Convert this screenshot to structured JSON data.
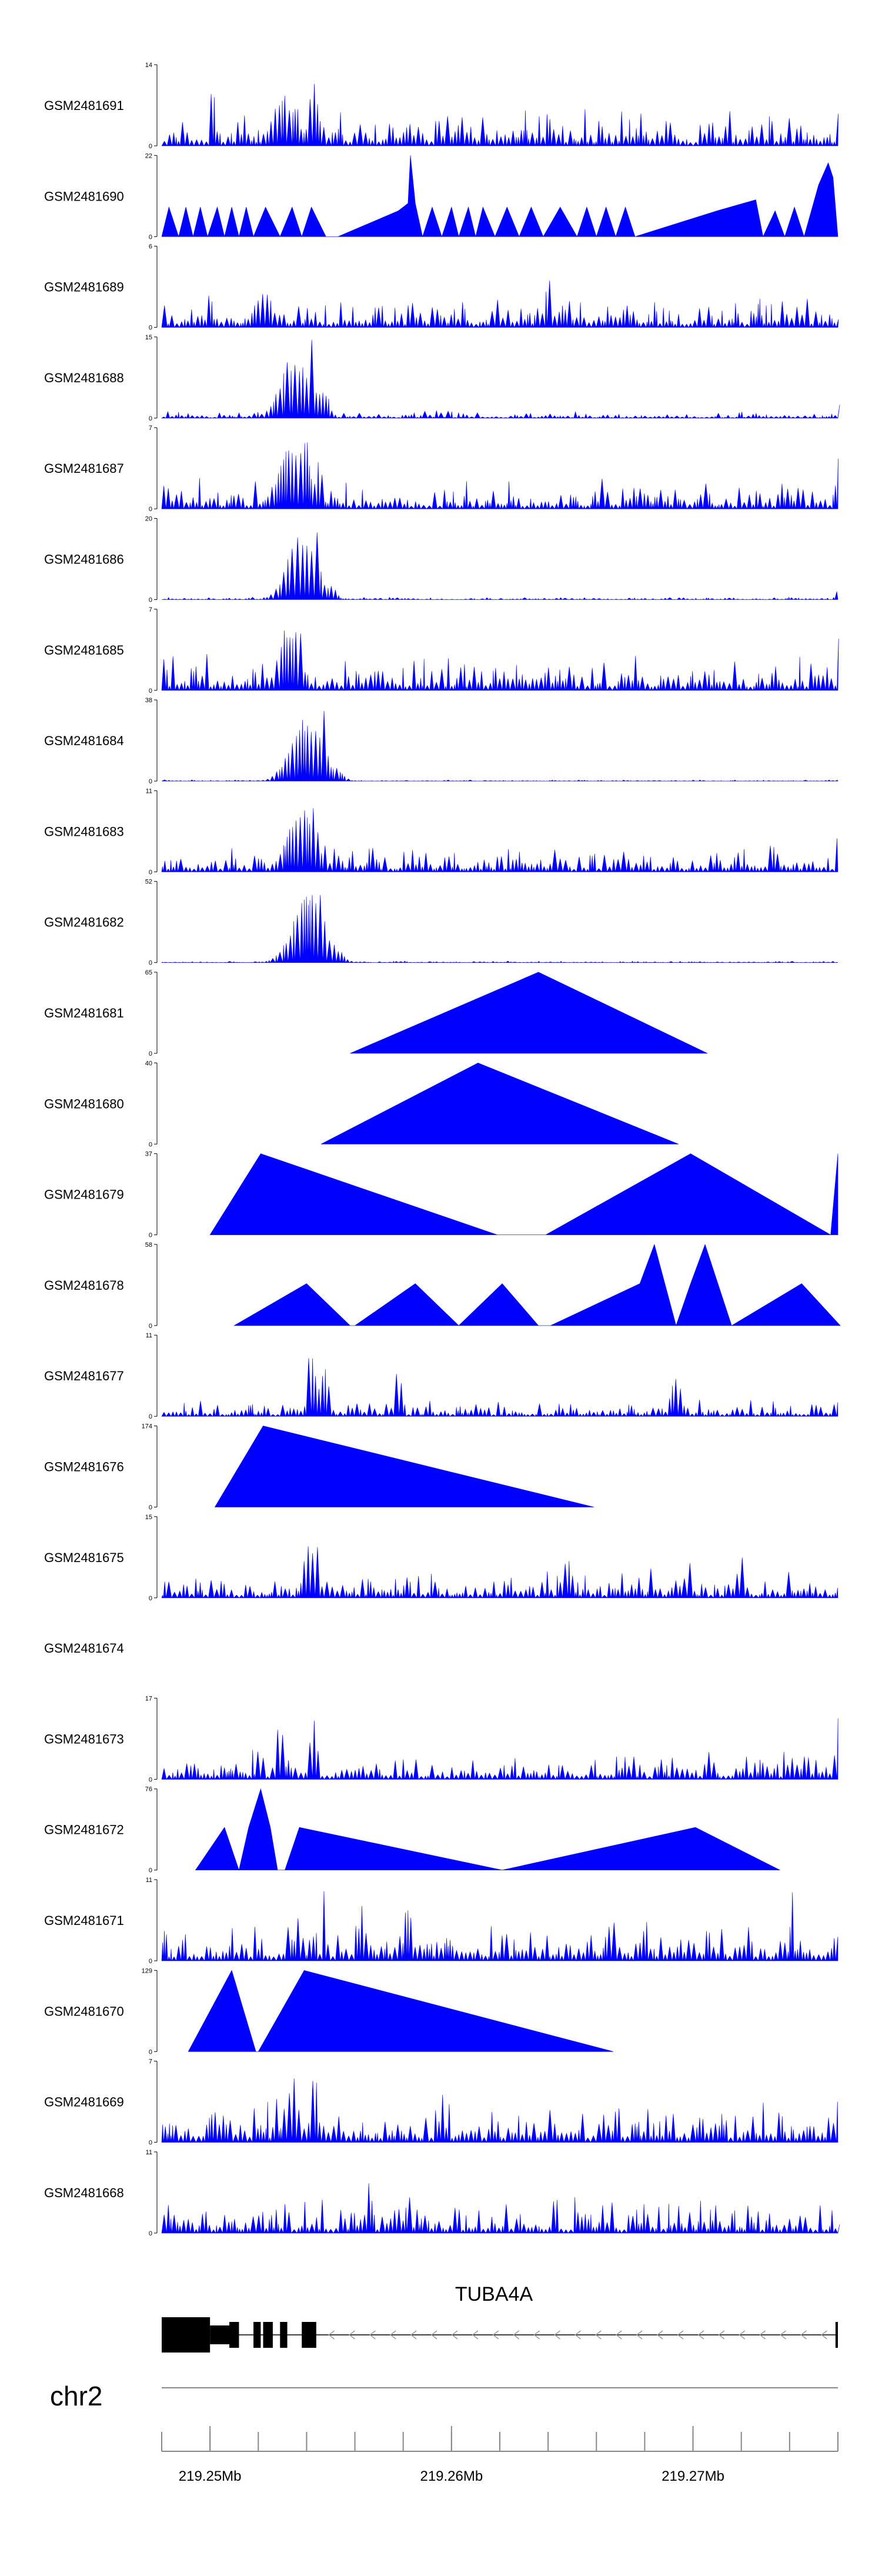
{
  "chart_data": {
    "type": "area",
    "x_unit": "Mb",
    "xlim": [
      219.248,
      219.276
    ],
    "genome_axis": {
      "chrom": "chr2",
      "ticks": [
        219.25,
        219.26,
        219.27
      ],
      "tick_labels": [
        "219.25Mb",
        "219.26Mb",
        "219.27Mb"
      ]
    },
    "gene": {
      "name": "TUBA4A",
      "strand": "-",
      "start": 219.248,
      "end": 219.276,
      "exons": [
        [
          219.248,
          219.25
        ],
        [
          219.2508,
          219.2512
        ],
        [
          219.2518,
          219.2521
        ],
        [
          219.2522,
          219.2526
        ],
        [
          219.2529,
          219.2532
        ],
        [
          219.2538,
          219.2544
        ],
        [
          219.2759,
          219.276
        ]
      ]
    },
    "fill_color": "#0000ff",
    "tracks": [
      {
        "name": "GSM2481691",
        "ymax": 14,
        "profile": "dense",
        "seed": 11,
        "peaks": [
          [
            219.2501,
            14,
            0.00012
          ],
          [
            219.253,
            9,
            0.0006
          ],
          [
            219.2535,
            8,
            0.0003
          ],
          [
            219.2543,
            11,
            0.0003
          ]
        ],
        "base": 4
      },
      {
        "name": "GSM2481690",
        "ymax": 22,
        "profile": "points",
        "points": [
          [
            219.248,
            0
          ],
          [
            219.2483,
            8
          ],
          [
            219.2487,
            0
          ],
          [
            219.249,
            8
          ],
          [
            219.2493,
            0
          ],
          [
            219.2496,
            8
          ],
          [
            219.2499,
            0
          ],
          [
            219.2503,
            8
          ],
          [
            219.2506,
            0
          ],
          [
            219.2509,
            8
          ],
          [
            219.2512,
            0
          ],
          [
            219.2515,
            8
          ],
          [
            219.2518,
            0
          ],
          [
            219.2523,
            8
          ],
          [
            219.2529,
            0
          ],
          [
            219.2534,
            8
          ],
          [
            219.2538,
            0
          ],
          [
            219.2542,
            8
          ],
          [
            219.2548,
            0
          ],
          [
            219.2553,
            0
          ],
          [
            219.2578,
            7
          ],
          [
            219.2582,
            9
          ],
          [
            219.2583,
            22
          ],
          [
            219.2585,
            9
          ],
          [
            219.2588,
            0
          ],
          [
            219.2592,
            8
          ],
          [
            219.2596,
            0
          ],
          [
            219.26,
            8
          ],
          [
            219.2603,
            0
          ],
          [
            219.2607,
            8
          ],
          [
            219.261,
            0
          ],
          [
            219.2613,
            8
          ],
          [
            219.2618,
            0
          ],
          [
            219.2623,
            8
          ],
          [
            219.2628,
            0
          ],
          [
            219.2633,
            8
          ],
          [
            219.2638,
            0
          ],
          [
            219.2645,
            8
          ],
          [
            219.2652,
            0
          ],
          [
            219.2656,
            8
          ],
          [
            219.266,
            0
          ],
          [
            219.2664,
            8
          ],
          [
            219.2668,
            0
          ],
          [
            219.2672,
            8
          ],
          [
            219.2676,
            0
          ],
          [
            219.271,
            7
          ],
          [
            219.2726,
            10
          ],
          [
            219.2729,
            0
          ],
          [
            219.2734,
            7
          ],
          [
            219.2738,
            0
          ],
          [
            219.2742,
            8
          ],
          [
            219.2746,
            0
          ],
          [
            219.2752,
            14
          ],
          [
            219.2756,
            20
          ],
          [
            219.2758,
            16
          ],
          [
            219.276,
            0
          ]
        ]
      },
      {
        "name": "GSM2481689",
        "ymax": 6,
        "profile": "dense",
        "seed": 23,
        "peaks": [
          [
            219.2522,
            3,
            0.0005
          ],
          [
            219.2583,
            4,
            0.0001
          ],
          [
            219.2618,
            5,
            0.0001
          ],
          [
            219.264,
            6,
            0.0001
          ],
          [
            219.2744,
            4,
            0.0001
          ]
        ],
        "base": 1.5
      },
      {
        "name": "GSM2481688",
        "ymax": 15,
        "profile": "dense",
        "seed": 31,
        "peaks": [
          [
            219.2535,
            12,
            0.0008
          ],
          [
            219.2542,
            15,
            0.0002
          ],
          [
            219.2547,
            6,
            0.0003
          ]
        ],
        "base": 0.8,
        "tail": [
          219.2759,
          4
        ]
      },
      {
        "name": "GSM2481687",
        "ymax": 7,
        "profile": "dense",
        "seed": 37,
        "peaks": [
          [
            219.2535,
            6,
            0.0009
          ],
          [
            219.254,
            7,
            0.0002
          ],
          [
            219.2545,
            5,
            0.0002
          ]
        ],
        "base": 1.6,
        "tail": [
          219.2759,
          7
        ]
      },
      {
        "name": "GSM2481686",
        "ymax": 20,
        "profile": "dense",
        "seed": 41,
        "peaks": [
          [
            219.2538,
            17,
            0.0008
          ],
          [
            219.2544,
            20,
            0.0002
          ],
          [
            219.255,
            4,
            0.0003
          ]
        ],
        "base": 0.4,
        "tail": [
          219.2759,
          3
        ]
      },
      {
        "name": "GSM2481685",
        "ymax": 7,
        "profile": "dense",
        "seed": 43,
        "peaks": [
          [
            219.2533,
            6,
            0.0006
          ],
          [
            219.2537,
            7,
            0.0002
          ]
        ],
        "base": 2.0,
        "tail": [
          219.2759,
          5
        ]
      },
      {
        "name": "GSM2481684",
        "ymax": 38,
        "profile": "dense",
        "seed": 47,
        "peaks": [
          [
            219.254,
            30,
            0.0009
          ],
          [
            219.2547,
            38,
            0.0002
          ],
          [
            219.2552,
            7,
            0.0004
          ]
        ],
        "base": 0.4
      },
      {
        "name": "GSM2481683",
        "ymax": 11,
        "profile": "dense",
        "seed": 53,
        "peaks": [
          [
            219.2538,
            9,
            0.0008
          ],
          [
            219.2543,
            11,
            0.0002
          ]
        ],
        "base": 2.4,
        "tail": [
          219.2759,
          6
        ]
      },
      {
        "name": "GSM2481682",
        "ymax": 52,
        "profile": "dense",
        "seed": 59,
        "peaks": [
          [
            219.2541,
            45,
            0.0009
          ],
          [
            219.2546,
            52,
            0.0002
          ],
          [
            219.2552,
            10,
            0.0004
          ]
        ],
        "base": 0.6
      },
      {
        "name": "GSM2481681",
        "ymax": 65,
        "profile": "points",
        "points": [
          [
            219.2558,
            0
          ],
          [
            219.2636,
            65
          ],
          [
            219.2706,
            0
          ]
        ]
      },
      {
        "name": "GSM2481680",
        "ymax": 40,
        "profile": "points",
        "points": [
          [
            219.2546,
            0
          ],
          [
            219.2611,
            40
          ],
          [
            219.2694,
            0
          ]
        ]
      },
      {
        "name": "GSM2481679",
        "ymax": 37,
        "profile": "points",
        "points": [
          [
            219.25,
            0
          ],
          [
            219.2521,
            37
          ],
          [
            219.2619,
            0
          ],
          [
            219.2639,
            0
          ],
          [
            219.2699,
            37
          ],
          [
            219.2757,
            0
          ],
          [
            219.276,
            37
          ],
          [
            219.276,
            0
          ]
        ]
      },
      {
        "name": "GSM2481678",
        "ymax": 58,
        "profile": "points",
        "points": [
          [
            219.251,
            0
          ],
          [
            219.254,
            30
          ],
          [
            219.2558,
            0
          ],
          [
            219.256,
            0
          ],
          [
            219.2585,
            30
          ],
          [
            219.2603,
            0
          ],
          [
            219.2621,
            30
          ],
          [
            219.2636,
            0
          ],
          [
            219.2641,
            0
          ],
          [
            219.2678,
            30
          ],
          [
            219.2684,
            58
          ],
          [
            219.2693,
            0
          ],
          [
            219.2699,
            30
          ],
          [
            219.2705,
            58
          ],
          [
            219.2716,
            0
          ],
          [
            219.2745,
            30
          ],
          [
            219.2761,
            0
          ]
        ]
      },
      {
        "name": "GSM2481677",
        "ymax": 11,
        "profile": "dense",
        "seed": 67,
        "peaks": [
          [
            219.2542,
            11,
            0.0002
          ],
          [
            219.2547,
            7,
            0.0003
          ],
          [
            219.2578,
            7,
            0.0002
          ],
          [
            219.2693,
            6,
            0.0003
          ]
        ],
        "base": 1.6,
        "tail": [
          219.2759,
          2
        ]
      },
      {
        "name": "GSM2481676",
        "ymax": 174,
        "profile": "points",
        "points": [
          [
            219.2502,
            0
          ],
          [
            219.2522,
            174
          ],
          [
            219.2659,
            0
          ]
        ]
      },
      {
        "name": "GSM2481675",
        "ymax": 15,
        "profile": "dense",
        "seed": 71,
        "peaks": [
          [
            219.2541,
            12,
            0.0003
          ],
          [
            219.2545,
            15,
            0.0001
          ],
          [
            219.2648,
            9,
            0.0002
          ],
          [
            219.2698,
            8,
            0.0002
          ],
          [
            219.272,
            10,
            0.0002
          ]
        ],
        "base": 3.2
      },
      {
        "name": "GSM2481674",
        "ymax": null,
        "profile": "none"
      },
      {
        "name": "GSM2481673",
        "ymax": 17,
        "profile": "dense",
        "seed": 79,
        "peaks": [
          [
            219.2529,
            14,
            0.0002
          ],
          [
            219.2543,
            15,
            0.0002
          ],
          [
            219.276,
            15,
            0.00015
          ]
        ],
        "base": 3.8
      },
      {
        "name": "GSM2481672",
        "ymax": 76,
        "profile": "points",
        "points": [
          [
            219.2494,
            0
          ],
          [
            219.2506,
            40
          ],
          [
            219.2512,
            0
          ],
          [
            219.2516,
            40
          ],
          [
            219.2521,
            76
          ],
          [
            219.2525,
            40
          ],
          [
            219.2528,
            0
          ],
          [
            219.2531,
            0
          ],
          [
            219.2537,
            40
          ],
          [
            219.2621,
            0
          ],
          [
            219.2701,
            40
          ],
          [
            219.2736,
            0
          ]
        ]
      },
      {
        "name": "GSM2481671",
        "ymax": 11,
        "profile": "dense",
        "seed": 83,
        "peaks": [
          [
            219.2536,
            9,
            0.0001
          ],
          [
            219.2547,
            10,
            0.0001
          ],
          [
            219.2563,
            9,
            0.0002
          ],
          [
            219.2582,
            9,
            0.0002
          ],
          [
            219.2741,
            10,
            0.0001
          ]
        ],
        "base": 3.6
      },
      {
        "name": "GSM2481670",
        "ymax": 129,
        "profile": "points",
        "points": [
          [
            219.2491,
            0
          ],
          [
            219.2509,
            129
          ],
          [
            219.2519,
            0
          ],
          [
            219.252,
            0
          ],
          [
            219.2539,
            129
          ],
          [
            219.2667,
            0
          ]
        ]
      },
      {
        "name": "GSM2481669",
        "ymax": 7,
        "profile": "dense",
        "seed": 89,
        "peaks": [
          [
            219.2534,
            6,
            0.0004
          ],
          [
            219.2543,
            7,
            0.0002
          ]
        ],
        "base": 2.4,
        "tail": [
          219.2759,
          4
        ]
      },
      {
        "name": "GSM2481668",
        "ymax": 11,
        "profile": "dense",
        "seed": 97,
        "peaks": [
          [
            219.2519,
            10,
            0.0001
          ],
          [
            219.2643,
            9,
            0.0001
          ],
          [
            219.2566,
            7,
            0.0002
          ]
        ],
        "base": 3.0
      }
    ]
  }
}
